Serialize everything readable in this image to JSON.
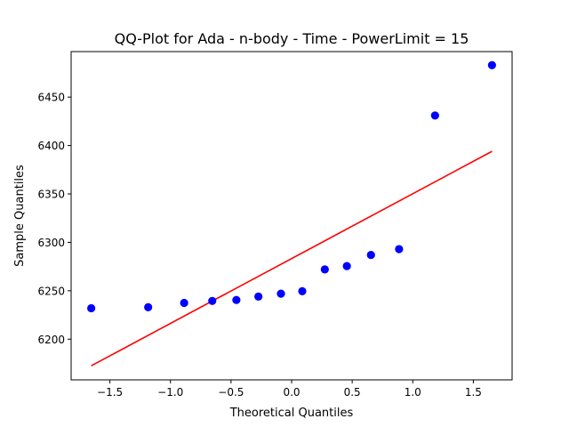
{
  "chart_data": {
    "type": "scatter",
    "title": "QQ-Plot for Ada - n-body - Time - PowerLimit = 15",
    "xlabel": "Theoretical Quantiles",
    "ylabel": "Sample Quantiles",
    "xlim": [
      -1.82,
      1.82
    ],
    "ylim": [
      6158,
      6497
    ],
    "x_ticks": [
      -1.5,
      -1.0,
      -0.5,
      0.0,
      0.5,
      1.0,
      1.5
    ],
    "x_tick_labels": [
      "−1.5",
      "−1.0",
      "−0.5",
      "0.0",
      "0.5",
      "1.0",
      "1.5"
    ],
    "y_ticks": [
      6200,
      6250,
      6300,
      6350,
      6400,
      6450
    ],
    "y_tick_labels": [
      "6200",
      "6250",
      "6300",
      "6350",
      "6400",
      "6450"
    ],
    "grid": false,
    "series": [
      {
        "kind": "points",
        "color": "#0000ff",
        "x": [
          -1.654,
          -1.184,
          -0.887,
          -0.655,
          -0.456,
          -0.274,
          -0.088,
          0.088,
          0.274,
          0.456,
          0.655,
          0.887,
          1.184,
          1.654
        ],
        "y": [
          6232,
          6233,
          6237.5,
          6239.5,
          6240.5,
          6244,
          6247,
          6249.5,
          6272,
          6275.5,
          6287,
          6293,
          6431,
          6483
        ]
      },
      {
        "kind": "line",
        "color": "#ff0000",
        "x": [
          -1.654,
          1.654
        ],
        "y": [
          6172.5,
          6394
        ]
      }
    ]
  }
}
